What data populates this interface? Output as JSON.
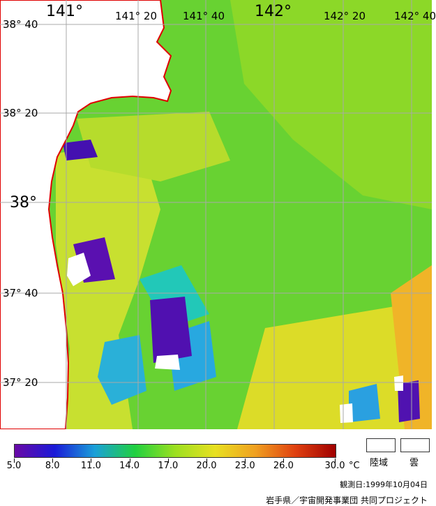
{
  "map": {
    "lon_labels": [
      "141°",
      "141° 20",
      "141° 40",
      "142°",
      "142° 20",
      "142° 40"
    ],
    "lat_labels": [
      "38° 40",
      "38° 20",
      "38°",
      "37° 40",
      "37° 20"
    ]
  },
  "legend": {
    "ticks": [
      "5.0",
      "8.0",
      "11.0",
      "14.0",
      "17.0",
      "20.0",
      "23.0",
      "26.0",
      "30.0"
    ],
    "unit": "°C",
    "land_label": "陸域",
    "cloud_label": "雲",
    "colors": [
      "#6a0aa6",
      "#1a1ad8",
      "#1aa0d8",
      "#20d040",
      "#9ce020",
      "#e8e020",
      "#f0a020",
      "#e04010",
      "#a00000"
    ]
  },
  "observation": "観測日:1999年10月04日",
  "credit": "岩手県／宇宙開発事業団 共同プロジェクト"
}
